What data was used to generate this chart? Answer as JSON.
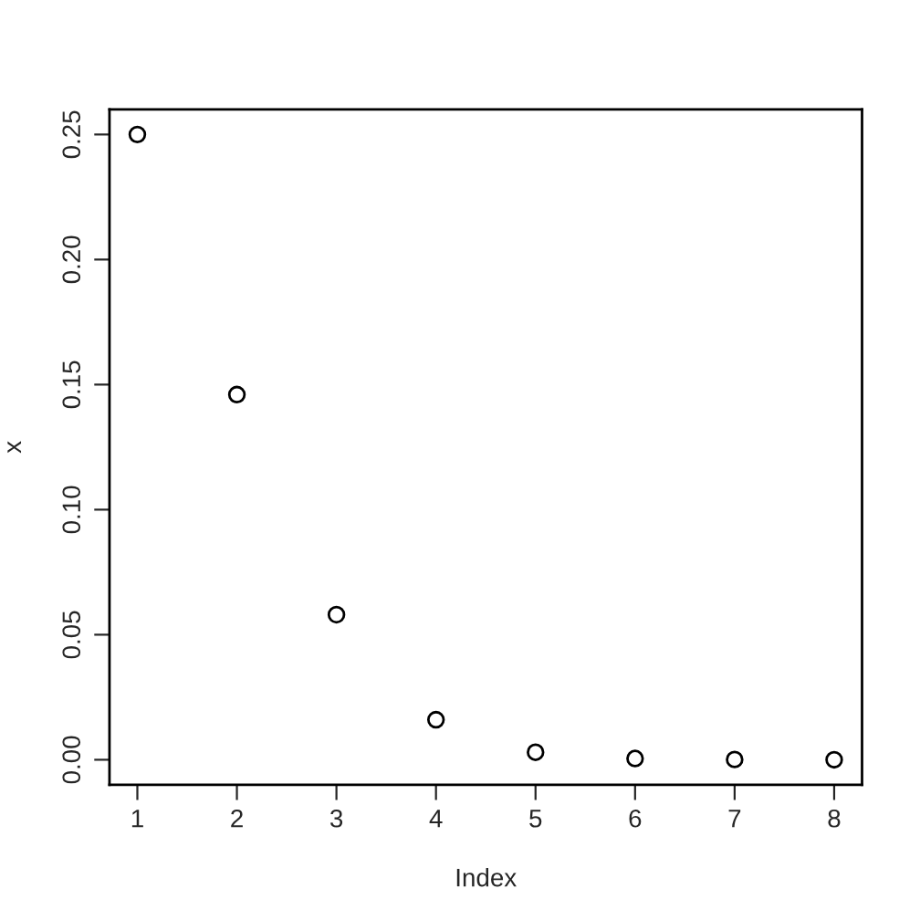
{
  "chart_data": {
    "type": "scatter",
    "xlabel": "Index",
    "ylabel": "x",
    "x": [
      1,
      2,
      3,
      4,
      5,
      6,
      7,
      8
    ],
    "values": [
      0.25,
      0.146,
      0.058,
      0.016,
      0.003,
      0.0005,
      0.0001,
      0.0
    ],
    "color": "#000000",
    "marker": "circle",
    "xlim": [
      0.72,
      8.28
    ],
    "ylim": [
      -0.01,
      0.26
    ],
    "xticks": [
      1,
      2,
      3,
      4,
      5,
      6,
      7,
      8
    ],
    "yticks": [
      {
        "value": 0,
        "label": "0.00"
      },
      {
        "value": 0.05,
        "label": "0.05"
      },
      {
        "value": 0.1,
        "label": "0.10"
      },
      {
        "value": 0.15,
        "label": "0.15"
      },
      {
        "value": 0.2,
        "label": "0.20"
      },
      {
        "value": 0.25,
        "label": "0.25"
      }
    ],
    "grid": false
  }
}
